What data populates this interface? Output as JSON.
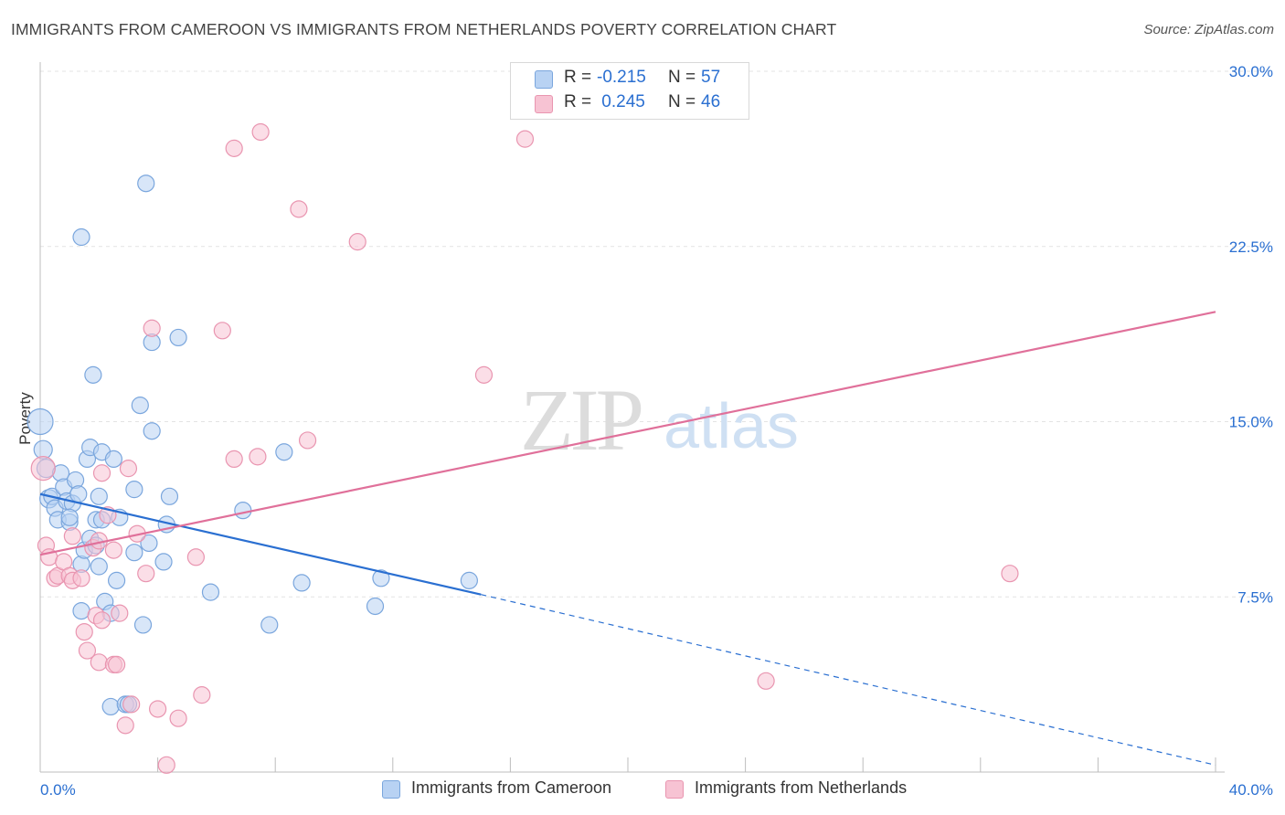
{
  "title": "IMMIGRANTS FROM CAMEROON VS IMMIGRANTS FROM NETHERLANDS POVERTY CORRELATION CHART",
  "source": "Source: ZipAtlas.com",
  "watermark": {
    "zip": "ZIP",
    "atlas": "atlas"
  },
  "colors": {
    "blue_fill": "#b8d2f3",
    "blue_stroke": "#7aa6dd",
    "blue_line": "#2a6fd1",
    "pink_fill": "#f7c3d3",
    "pink_stroke": "#e995b0",
    "pink_line": "#e0709a",
    "value_text": "#2a6fd1",
    "grid": "#e3e3e3"
  },
  "legend_top": [
    {
      "r_label": "R = ",
      "r_value": "-0.215",
      "n_label": "N = ",
      "n_value": "57",
      "color": "#b8d2f3",
      "border": "#7aa6dd"
    },
    {
      "r_label": "R = ",
      "r_value": " 0.245",
      "n_label": "N = ",
      "n_value": "46",
      "color": "#f7c3d3",
      "border": "#e995b0"
    }
  ],
  "legend_bottom": [
    {
      "label": "Immigrants from Cameroon",
      "color": "#b8d2f3",
      "border": "#7aa6dd"
    },
    {
      "label": "Immigrants from Netherlands",
      "color": "#f7c3d3",
      "border": "#e995b0"
    }
  ],
  "chart_data": {
    "type": "scatter",
    "title": "IMMIGRANTS FROM CAMEROON VS IMMIGRANTS FROM NETHERLANDS POVERTY CORRELATION CHART",
    "xlabel": "",
    "ylabel": "Poverty",
    "xlim": [
      0,
      40
    ],
    "ylim": [
      0,
      30
    ],
    "x_tick_labels": [
      "0.0%",
      "40.0%"
    ],
    "y_ticks": [
      7.5,
      15.0,
      22.5,
      30.0
    ],
    "y_tick_labels": [
      "7.5%",
      "15.0%",
      "22.5%",
      "30.0%"
    ],
    "grid": true,
    "legend_position": "top-center",
    "series": [
      {
        "name": "Immigrants from Cameroon",
        "r": -0.215,
        "n": 57,
        "trend": {
          "x": [
            0,
            15.0
          ],
          "y": [
            11.9,
            7.6
          ],
          "dashed_extension": {
            "x": [
              15.0,
              40.0
            ],
            "y": [
              7.6,
              0.3
            ]
          }
        },
        "points": [
          [
            0.0,
            15.0,
            14
          ],
          [
            0.1,
            13.8,
            10
          ],
          [
            0.2,
            13.0,
            10
          ],
          [
            0.3,
            11.7,
            10
          ],
          [
            0.4,
            11.8,
            9
          ],
          [
            0.5,
            11.3,
            9
          ],
          [
            0.6,
            10.8,
            9
          ],
          [
            0.7,
            12.8,
            9
          ],
          [
            0.8,
            12.2,
            9
          ],
          [
            0.9,
            11.6,
            9
          ],
          [
            1.0,
            10.7,
            9
          ],
          [
            1.1,
            11.5,
            9
          ],
          [
            1.0,
            10.9,
            9
          ],
          [
            1.2,
            12.5,
            9
          ],
          [
            1.3,
            11.9,
            9
          ],
          [
            1.4,
            8.9,
            9
          ],
          [
            1.4,
            6.9,
            9
          ],
          [
            1.4,
            22.9,
            9
          ],
          [
            1.5,
            9.5,
            9
          ],
          [
            1.6,
            13.4,
            9
          ],
          [
            1.7,
            10.0,
            9
          ],
          [
            1.7,
            13.9,
            9
          ],
          [
            1.8,
            17.0,
            9
          ],
          [
            1.9,
            9.7,
            9
          ],
          [
            1.9,
            10.8,
            9
          ],
          [
            2.0,
            8.8,
            9
          ],
          [
            2.0,
            11.8,
            9
          ],
          [
            2.1,
            10.8,
            9
          ],
          [
            2.1,
            13.7,
            9
          ],
          [
            2.2,
            7.3,
            9
          ],
          [
            2.4,
            6.8,
            9
          ],
          [
            2.5,
            13.4,
            9
          ],
          [
            2.4,
            2.8,
            9
          ],
          [
            2.6,
            8.2,
            9
          ],
          [
            2.7,
            10.9,
            9
          ],
          [
            2.9,
            2.9,
            9
          ],
          [
            3.0,
            2.9,
            9
          ],
          [
            3.2,
            9.4,
            9
          ],
          [
            3.2,
            12.1,
            9
          ],
          [
            3.4,
            15.7,
            9
          ],
          [
            3.5,
            6.3,
            9
          ],
          [
            3.6,
            25.2,
            9
          ],
          [
            3.7,
            9.8,
            9
          ],
          [
            3.8,
            14.6,
            9
          ],
          [
            3.8,
            18.4,
            9
          ],
          [
            4.2,
            9.0,
            9
          ],
          [
            4.3,
            10.6,
            9
          ],
          [
            4.4,
            11.8,
            9
          ],
          [
            4.7,
            18.6,
            9
          ],
          [
            5.8,
            7.7,
            9
          ],
          [
            6.9,
            11.2,
            9
          ],
          [
            7.8,
            6.3,
            9
          ],
          [
            8.3,
            13.7,
            9
          ],
          [
            8.9,
            8.1,
            9
          ],
          [
            11.6,
            8.3,
            9
          ],
          [
            11.4,
            7.1,
            9
          ],
          [
            14.6,
            8.2,
            9
          ]
        ]
      },
      {
        "name": "Immigrants from Netherlands",
        "r": 0.245,
        "n": 46,
        "trend": {
          "x": [
            0,
            40.0
          ],
          "y": [
            9.3,
            19.7
          ]
        },
        "points": [
          [
            0.1,
            13.0,
            13
          ],
          [
            0.2,
            9.7,
            9
          ],
          [
            0.3,
            9.2,
            9
          ],
          [
            0.5,
            8.3,
            9
          ],
          [
            0.6,
            8.4,
            9
          ],
          [
            0.8,
            9.0,
            9
          ],
          [
            1.0,
            8.4,
            9
          ],
          [
            1.1,
            8.2,
            9
          ],
          [
            1.1,
            10.1,
            9
          ],
          [
            1.4,
            8.3,
            9
          ],
          [
            1.5,
            6.0,
            9
          ],
          [
            1.6,
            5.2,
            9
          ],
          [
            1.8,
            9.6,
            9
          ],
          [
            1.9,
            6.7,
            9
          ],
          [
            2.0,
            4.7,
            9
          ],
          [
            2.0,
            9.9,
            9
          ],
          [
            2.1,
            6.5,
            9
          ],
          [
            2.1,
            12.8,
            9
          ],
          [
            2.3,
            11.0,
            9
          ],
          [
            2.5,
            9.5,
            9
          ],
          [
            2.5,
            4.6,
            9
          ],
          [
            2.6,
            4.6,
            9
          ],
          [
            2.7,
            6.8,
            9
          ],
          [
            2.9,
            2.0,
            9
          ],
          [
            3.1,
            2.9,
            9
          ],
          [
            3.0,
            13.0,
            9
          ],
          [
            3.3,
            10.2,
            9
          ],
          [
            3.6,
            8.5,
            9
          ],
          [
            3.8,
            19.0,
            9
          ],
          [
            4.0,
            2.7,
            9
          ],
          [
            4.3,
            0.3,
            9
          ],
          [
            4.7,
            2.3,
            9
          ],
          [
            5.3,
            9.2,
            9
          ],
          [
            5.5,
            3.3,
            9
          ],
          [
            6.2,
            18.9,
            9
          ],
          [
            6.6,
            13.4,
            9
          ],
          [
            6.6,
            26.7,
            9
          ],
          [
            7.4,
            13.5,
            9
          ],
          [
            7.5,
            27.4,
            9
          ],
          [
            8.8,
            24.1,
            9
          ],
          [
            9.1,
            14.2,
            9
          ],
          [
            10.8,
            22.7,
            9
          ],
          [
            15.1,
            17.0,
            9
          ],
          [
            16.5,
            27.1,
            9
          ],
          [
            24.7,
            3.9,
            9
          ],
          [
            33.0,
            8.5,
            9
          ]
        ]
      }
    ]
  }
}
